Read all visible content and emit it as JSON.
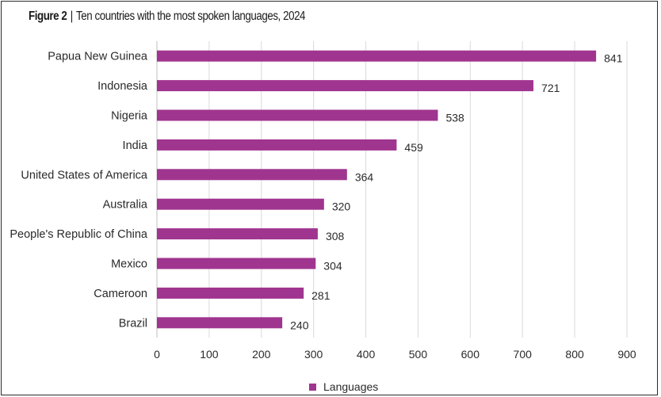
{
  "title": {
    "figure_label": "Figure 2",
    "separator": "|",
    "text": "Ten countries with the most spoken languages, 2024"
  },
  "chart_data": {
    "type": "bar",
    "orientation": "horizontal",
    "categories": [
      "Papua New Guinea",
      "Indonesia",
      "Nigeria",
      "India",
      "United States of America",
      "Australia",
      "People's Republic of China",
      "Mexico",
      "Cameroon",
      "Brazil"
    ],
    "series": [
      {
        "name": "Languages",
        "values": [
          841,
          721,
          538,
          459,
          364,
          320,
          308,
          304,
          281,
          240
        ],
        "color": "#a0358f"
      }
    ],
    "xlim": [
      0,
      900
    ],
    "xticks": [
      0,
      100,
      200,
      300,
      400,
      500,
      600,
      700,
      800,
      900
    ],
    "grid": "vertical",
    "legend_position": "bottom-center",
    "data_labels": true
  }
}
